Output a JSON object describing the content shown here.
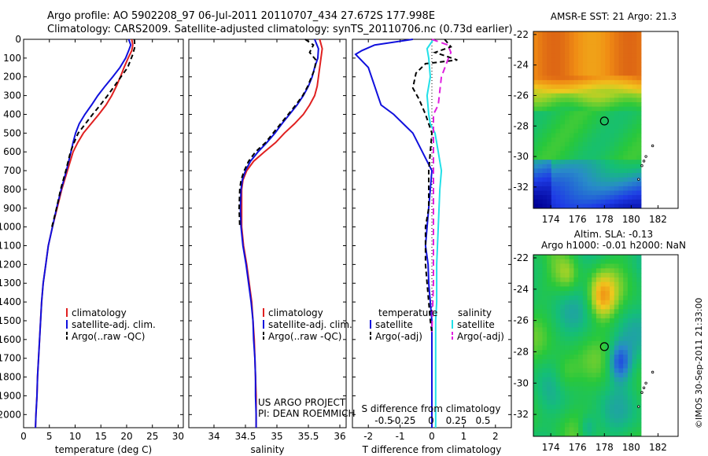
{
  "header": {
    "line1": "Argo profile: AO 5902208_97 06-Jul-2011 20110707_434 27.672S 177.998E",
    "line2": "Climatology: CARS2009. Satellite-adjusted climatology: synTS_20110706.nc (0.73d earlier)"
  },
  "footer_note": "©IMOS 30-Sep-2011 21:33:00",
  "colors": {
    "climatology": "#e02020",
    "satellite": "#1010dd",
    "argo": "#000000",
    "sal_sat": "#22e0e8",
    "sal_argo": "#e020e0"
  },
  "chart_data": [
    {
      "type": "line",
      "xlabel": "temperature (deg C)",
      "xlim": [
        0,
        31
      ],
      "xticks": [
        0,
        5,
        10,
        15,
        20,
        25,
        30
      ],
      "ylim": [
        2070,
        0
      ],
      "yticks": [
        0,
        100,
        200,
        300,
        400,
        500,
        600,
        700,
        800,
        900,
        1000,
        1100,
        1200,
        1300,
        1400,
        1500,
        1600,
        1700,
        1800,
        1900,
        2000
      ],
      "legend": [
        "climatology",
        "satellite-adj. clim.",
        "Argo(..raw -QC)"
      ],
      "series": [
        {
          "name": "climatology",
          "color": "#e02020",
          "dash": "",
          "points": [
            [
              21.0,
              0
            ],
            [
              21.2,
              30
            ],
            [
              21.0,
              60
            ],
            [
              20.3,
              100
            ],
            [
              19.5,
              150
            ],
            [
              18.8,
              200
            ],
            [
              18.0,
              250
            ],
            [
              17.1,
              300
            ],
            [
              16.0,
              350
            ],
            [
              14.6,
              400
            ],
            [
              13.1,
              450
            ],
            [
              11.6,
              500
            ],
            [
              10.5,
              550
            ],
            [
              9.6,
              600
            ],
            [
              8.5,
              700
            ],
            [
              7.4,
              800
            ],
            [
              6.5,
              900
            ],
            [
              5.6,
              1000
            ],
            [
              4.8,
              1100
            ],
            [
              4.3,
              1200
            ],
            [
              3.8,
              1300
            ],
            [
              3.5,
              1400
            ],
            [
              3.3,
              1500
            ],
            [
              3.1,
              1600
            ],
            [
              2.9,
              1700
            ],
            [
              2.7,
              1800
            ],
            [
              2.6,
              1900
            ],
            [
              2.4,
              2000
            ],
            [
              2.3,
              2070
            ]
          ]
        },
        {
          "name": "satellite-adj. clim.",
          "color": "#1010dd",
          "dash": "",
          "points": [
            [
              20.4,
              0
            ],
            [
              20.8,
              30
            ],
            [
              20.4,
              60
            ],
            [
              19.8,
              100
            ],
            [
              18.7,
              150
            ],
            [
              17.3,
              200
            ],
            [
              15.8,
              250
            ],
            [
              14.4,
              300
            ],
            [
              13.2,
              350
            ],
            [
              11.9,
              400
            ],
            [
              10.8,
              450
            ],
            [
              10.1,
              500
            ],
            [
              9.6,
              550
            ],
            [
              9.2,
              600
            ],
            [
              8.3,
              700
            ],
            [
              7.3,
              800
            ],
            [
              6.4,
              900
            ],
            [
              5.6,
              1000
            ],
            [
              4.8,
              1100
            ],
            [
              4.3,
              1200
            ],
            [
              3.8,
              1300
            ],
            [
              3.5,
              1400
            ],
            [
              3.3,
              1500
            ],
            [
              3.1,
              1600
            ],
            [
              2.9,
              1700
            ],
            [
              2.7,
              1800
            ],
            [
              2.6,
              1900
            ],
            [
              2.4,
              2000
            ],
            [
              2.3,
              2070
            ]
          ]
        },
        {
          "name": "Argo(..raw -QC)",
          "color": "#000000",
          "dash": "6,4",
          "points": [
            [
              21.5,
              0
            ],
            [
              21.6,
              40
            ],
            [
              21.2,
              80
            ],
            [
              20.2,
              150
            ],
            [
              18.9,
              200
            ],
            [
              17.6,
              250
            ],
            [
              16.3,
              300
            ],
            [
              14.9,
              350
            ],
            [
              13.4,
              400
            ],
            [
              12.0,
              450
            ],
            [
              10.6,
              500
            ],
            [
              9.8,
              550
            ],
            [
              9.1,
              600
            ],
            [
              8.2,
              700
            ],
            [
              7.2,
              800
            ],
            [
              6.4,
              900
            ],
            [
              5.5,
              1000
            ]
          ]
        }
      ]
    },
    {
      "type": "line",
      "xlabel": "salinity",
      "xlim": [
        33.6,
        36.1
      ],
      "xticks": [
        34,
        34.5,
        35,
        35.5,
        36
      ],
      "ylim": [
        2070,
        0
      ],
      "legend": [
        "climatology",
        "satellite-adj. clim.",
        "Argo(..raw -QC)"
      ],
      "annotation": [
        "US ARGO PROJECT",
        "PI: DEAN ROEMMICH"
      ],
      "series": [
        {
          "name": "climatology",
          "color": "#e02020",
          "dash": "",
          "points": [
            [
              35.68,
              0
            ],
            [
              35.72,
              50
            ],
            [
              35.7,
              100
            ],
            [
              35.68,
              150
            ],
            [
              35.66,
              200
            ],
            [
              35.64,
              250
            ],
            [
              35.6,
              300
            ],
            [
              35.52,
              350
            ],
            [
              35.42,
              400
            ],
            [
              35.28,
              450
            ],
            [
              35.12,
              500
            ],
            [
              34.98,
              550
            ],
            [
              34.8,
              600
            ],
            [
              34.63,
              650
            ],
            [
              34.52,
              700
            ],
            [
              34.46,
              750
            ],
            [
              34.44,
              800
            ],
            [
              34.44,
              900
            ],
            [
              34.44,
              1000
            ],
            [
              34.47,
              1100
            ],
            [
              34.52,
              1200
            ],
            [
              34.56,
              1300
            ],
            [
              34.6,
              1400
            ],
            [
              34.62,
              1500
            ],
            [
              34.64,
              1600
            ],
            [
              34.65,
              1700
            ],
            [
              34.66,
              1800
            ],
            [
              34.67,
              1900
            ],
            [
              34.67,
              2000
            ],
            [
              34.67,
              2070
            ]
          ]
        },
        {
          "name": "satellite-adj. clim.",
          "color": "#1010dd",
          "dash": "",
          "points": [
            [
              35.6,
              0
            ],
            [
              35.66,
              50
            ],
            [
              35.65,
              100
            ],
            [
              35.6,
              150
            ],
            [
              35.56,
              200
            ],
            [
              35.5,
              250
            ],
            [
              35.42,
              300
            ],
            [
              35.32,
              350
            ],
            [
              35.2,
              400
            ],
            [
              35.08,
              450
            ],
            [
              34.97,
              500
            ],
            [
              34.84,
              550
            ],
            [
              34.7,
              600
            ],
            [
              34.58,
              650
            ],
            [
              34.5,
              700
            ],
            [
              34.45,
              750
            ],
            [
              34.43,
              800
            ],
            [
              34.42,
              900
            ],
            [
              34.43,
              1000
            ],
            [
              34.46,
              1100
            ],
            [
              34.51,
              1200
            ],
            [
              34.55,
              1300
            ],
            [
              34.59,
              1400
            ],
            [
              34.62,
              1500
            ],
            [
              34.63,
              1600
            ],
            [
              34.65,
              1700
            ],
            [
              34.66,
              1800
            ],
            [
              34.66,
              1900
            ],
            [
              34.67,
              2000
            ],
            [
              34.67,
              2070
            ]
          ]
        },
        {
          "name": "Argo(..raw -QC)",
          "color": "#000000",
          "dash": "6,4",
          "points": [
            [
              35.45,
              0
            ],
            [
              35.58,
              30
            ],
            [
              35.52,
              70
            ],
            [
              35.62,
              110
            ],
            [
              35.6,
              160
            ],
            [
              35.55,
              200
            ],
            [
              35.49,
              250
            ],
            [
              35.41,
              300
            ],
            [
              35.3,
              350
            ],
            [
              35.18,
              400
            ],
            [
              35.06,
              450
            ],
            [
              34.94,
              500
            ],
            [
              34.82,
              550
            ],
            [
              34.66,
              600
            ],
            [
              34.55,
              650
            ],
            [
              34.48,
              700
            ],
            [
              34.43,
              750
            ],
            [
              34.41,
              800
            ],
            [
              34.4,
              900
            ],
            [
              34.41,
              1000
            ]
          ]
        }
      ]
    },
    {
      "type": "line",
      "xlabel": "T difference from climatology",
      "xlim": [
        -2.5,
        2.5
      ],
      "xticks": [
        -2,
        -1,
        0,
        1,
        2
      ],
      "top_label": "S difference from climatology",
      "top_ticks": [
        "-0.5",
        "-0.25",
        "0",
        "0.25",
        "0.5"
      ],
      "ylim": [
        2070,
        0
      ],
      "legend_temperature": {
        "title": "temperature",
        "items": [
          "satellite",
          "Argo(-adj)"
        ]
      },
      "legend_salinity": {
        "title": "salinity",
        "items": [
          "satellite",
          "Argo(-adj)"
        ]
      },
      "series": [
        {
          "name": "satellite",
          "group": "temperature",
          "color": "#1010dd",
          "dash": "",
          "points": [
            [
              -0.6,
              0
            ],
            [
              -1.8,
              30
            ],
            [
              -2.2,
              60
            ],
            [
              -2.4,
              80
            ],
            [
              -2.0,
              150
            ],
            [
              -1.8,
              250
            ],
            [
              -1.7,
              300
            ],
            [
              -1.6,
              350
            ],
            [
              -1.2,
              400
            ],
            [
              -0.9,
              450
            ],
            [
              -0.6,
              500
            ],
            [
              -0.3,
              600
            ],
            [
              0.0,
              700
            ],
            [
              -0.05,
              800
            ],
            [
              -0.15,
              1000
            ],
            [
              -0.2,
              1100
            ],
            [
              -0.12,
              1200
            ],
            [
              -0.1,
              1300
            ],
            [
              -0.05,
              1400
            ],
            [
              0.0,
              1500
            ],
            [
              0.0,
              1800
            ],
            [
              0.0,
              2070
            ]
          ]
        },
        {
          "name": "Argo(-adj)",
          "group": "temperature",
          "color": "#000000",
          "dash": "6,4",
          "points": [
            [
              0.4,
              0
            ],
            [
              0.6,
              40
            ],
            [
              0.1,
              70
            ],
            [
              0.8,
              110
            ],
            [
              -0.2,
              130
            ],
            [
              -0.5,
              180
            ],
            [
              -0.6,
              260
            ],
            [
              -0.4,
              320
            ],
            [
              -0.2,
              400
            ],
            [
              -0.1,
              450
            ],
            [
              0.0,
              500
            ],
            [
              -0.1,
              700
            ],
            [
              -0.1,
              900
            ],
            [
              -0.2,
              1000
            ],
            [
              -0.2,
              1100
            ],
            [
              -0.2,
              1200
            ],
            [
              -0.15,
              1300
            ],
            [
              -0.1,
              1400
            ],
            [
              -0.05,
              1500
            ],
            [
              0.0,
              1560
            ]
          ]
        },
        {
          "name": "satellite",
          "group": "salinity",
          "color": "#22e0e8",
          "dash": "",
          "points": [
            [
              0.05,
              0
            ],
            [
              -0.15,
              50
            ],
            [
              -0.1,
              100
            ],
            [
              -0.05,
              200
            ],
            [
              -0.15,
              300
            ],
            [
              -0.1,
              400
            ],
            [
              -0.05,
              450
            ],
            [
              0.1,
              500
            ],
            [
              0.2,
              600
            ],
            [
              0.3,
              700
            ],
            [
              0.25,
              800
            ],
            [
              0.2,
              1000
            ],
            [
              0.15,
              1200
            ],
            [
              0.15,
              1400
            ],
            [
              0.12,
              1500
            ],
            [
              0.12,
              1700
            ],
            [
              0.12,
              2070
            ]
          ]
        },
        {
          "name": "Argo(-adj)",
          "group": "salinity",
          "color": "#e020e0",
          "dash": "8,5",
          "points": [
            [
              0.0,
              0
            ],
            [
              0.5,
              30
            ],
            [
              0.6,
              70
            ],
            [
              0.5,
              110
            ],
            [
              0.3,
              200
            ],
            [
              0.2,
              350
            ],
            [
              0.05,
              400
            ],
            [
              0.05,
              600
            ],
            [
              0.05,
              800
            ],
            [
              0.05,
              1000
            ],
            [
              0.05,
              1300
            ],
            [
              0.0,
              1560
            ]
          ]
        }
      ]
    }
  ],
  "maps": [
    {
      "title": [
        "AMSR-E SST: 21 Argo: 21.3"
      ],
      "xticks": [
        "174",
        "176",
        "178",
        "180",
        "182"
      ],
      "yticks": [
        "-22",
        "-24",
        "-26",
        "-28",
        "-30",
        "-32"
      ]
    },
    {
      "title": [
        "Altim. SLA: -0.13",
        "Argo h1000: -0.01 h2000: NaN"
      ],
      "xticks": [
        "174",
        "176",
        "178",
        "180",
        "182"
      ],
      "yticks": [
        "-22",
        "-24",
        "-26",
        "-28",
        "-30",
        "-32"
      ]
    }
  ]
}
